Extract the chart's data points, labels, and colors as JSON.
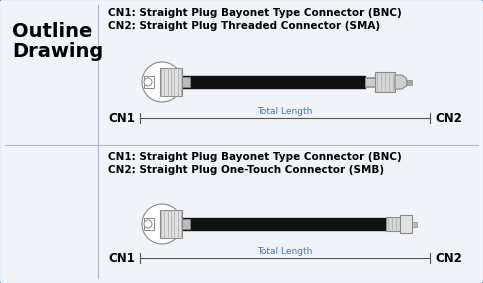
{
  "bg_color": "#f0f4f8",
  "border_color": "#5580a8",
  "outline_text_line1": "Outline",
  "outline_text_line2": "Drawing",
  "title1_line1": "CN1: Straight Plug Bayonet Type Connector (BNC)",
  "title1_line2": "CN2: Straight Plug Threaded Connector (SMA)",
  "title2_line1": "CN1: Straight Plug Bayonet Type Connector (BNC)",
  "title2_line2": "CN2: Straight Plug One-Touch Connector (SMB)",
  "total_length_label": "Total Length",
  "cn1_label": "CN1",
  "cn2_label": "CN2",
  "cable_color": "#111111",
  "connector_color": "#d8d8d8",
  "connector_edge": "#888888",
  "dim_color": "#3a7abf",
  "text_color": "#000000",
  "title_color": "#000000",
  "separator_color": "#b0b8c8",
  "dim_line_color": "#555555"
}
